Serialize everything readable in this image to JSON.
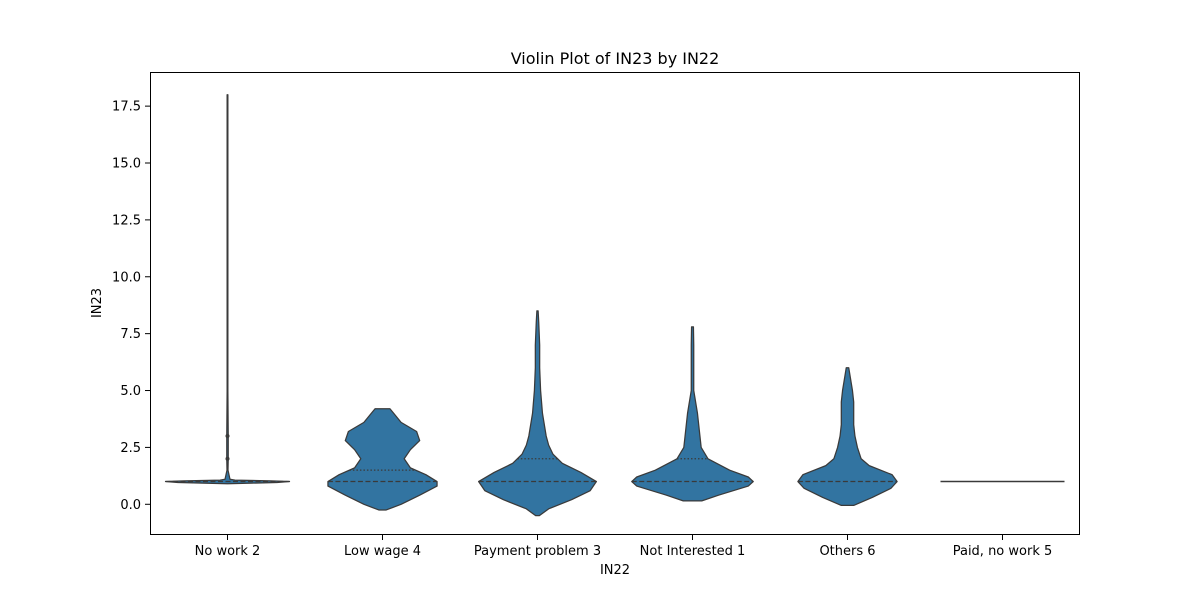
{
  "chart_data": {
    "type": "violin",
    "title": "Violin Plot of IN23 by IN22",
    "xlabel": "IN22",
    "ylabel": "IN23",
    "ylim": [
      -1.35,
      19.0
    ],
    "yticks": [
      0.0,
      2.5,
      5.0,
      7.5,
      10.0,
      12.5,
      15.0,
      17.5
    ],
    "ytick_labels": [
      "0.0",
      "2.5",
      "5.0",
      "7.5",
      "10.0",
      "12.5",
      "15.0",
      "17.5"
    ],
    "categories": [
      "No work 2",
      "Low wage 4",
      "Payment problem 3",
      "Not Interested 1",
      "Others 6",
      "Paid, no work 5"
    ],
    "fill_color": "#3274a1",
    "edge_color": "#3a3a3a",
    "violins": [
      {
        "category": "No work 2",
        "density": [
          [
            0.9,
            0.0
          ],
          [
            0.93,
            0.4
          ],
          [
            0.96,
            0.8
          ],
          [
            1.0,
            1.0
          ],
          [
            1.03,
            0.7
          ],
          [
            1.06,
            0.12
          ],
          [
            1.1,
            0.04
          ],
          [
            1.5,
            0.008
          ],
          [
            2.0,
            0.012
          ],
          [
            3.0,
            0.012
          ],
          [
            5.0,
            0.006
          ],
          [
            10.0,
            0.006
          ],
          [
            18.0,
            0.006
          ]
        ],
        "q1": 1.0,
        "median": 1.0,
        "q3": 1.0,
        "points": [
          2.0,
          3.0
        ]
      },
      {
        "category": "Low wage 4",
        "density": [
          [
            -0.25,
            0.06
          ],
          [
            0.0,
            0.3
          ],
          [
            0.4,
            0.6
          ],
          [
            0.8,
            0.88
          ],
          [
            1.0,
            0.88
          ],
          [
            1.3,
            0.7
          ],
          [
            1.6,
            0.45
          ],
          [
            2.0,
            0.35
          ],
          [
            2.4,
            0.45
          ],
          [
            2.8,
            0.6
          ],
          [
            3.2,
            0.55
          ],
          [
            3.6,
            0.3
          ],
          [
            4.0,
            0.18
          ],
          [
            4.2,
            0.12
          ]
        ],
        "q1": 1.0,
        "median": 1.0,
        "q3": 1.5
      },
      {
        "category": "Payment problem 3",
        "density": [
          [
            -0.5,
            0.03
          ],
          [
            -0.2,
            0.18
          ],
          [
            0.2,
            0.55
          ],
          [
            0.6,
            0.85
          ],
          [
            1.0,
            0.95
          ],
          [
            1.4,
            0.7
          ],
          [
            1.8,
            0.4
          ],
          [
            2.2,
            0.25
          ],
          [
            2.6,
            0.18
          ],
          [
            3.0,
            0.14
          ],
          [
            4.0,
            0.08
          ],
          [
            5.0,
            0.05
          ],
          [
            6.0,
            0.035
          ],
          [
            7.0,
            0.035
          ],
          [
            8.0,
            0.02
          ],
          [
            8.5,
            0.01
          ]
        ],
        "q1": 1.0,
        "median": 1.0,
        "q3": 2.0
      },
      {
        "category": "Not Interested 1",
        "density": [
          [
            0.15,
            0.15
          ],
          [
            0.4,
            0.42
          ],
          [
            0.8,
            0.9
          ],
          [
            1.0,
            0.98
          ],
          [
            1.2,
            0.9
          ],
          [
            1.5,
            0.6
          ],
          [
            2.0,
            0.25
          ],
          [
            2.5,
            0.14
          ],
          [
            3.0,
            0.12
          ],
          [
            3.5,
            0.1
          ],
          [
            4.0,
            0.08
          ],
          [
            4.5,
            0.05
          ],
          [
            5.0,
            0.02
          ],
          [
            6.0,
            0.02
          ],
          [
            7.0,
            0.02
          ],
          [
            7.8,
            0.015
          ]
        ],
        "q1": 1.0,
        "median": 1.0,
        "q3": 2.0
      },
      {
        "category": "Others 6",
        "density": [
          [
            -0.05,
            0.1
          ],
          [
            0.3,
            0.4
          ],
          [
            0.7,
            0.7
          ],
          [
            1.0,
            0.8
          ],
          [
            1.3,
            0.72
          ],
          [
            1.7,
            0.35
          ],
          [
            2.0,
            0.22
          ],
          [
            2.5,
            0.16
          ],
          [
            3.0,
            0.12
          ],
          [
            3.5,
            0.1
          ],
          [
            4.0,
            0.1
          ],
          [
            4.5,
            0.1
          ],
          [
            5.0,
            0.08
          ],
          [
            5.5,
            0.05
          ],
          [
            6.0,
            0.02
          ]
        ],
        "q1": 1.0,
        "median": 1.0,
        "q3": 1.0
      },
      {
        "category": "Paid, no work 5",
        "density": [],
        "flat_value": 1.0
      }
    ]
  }
}
